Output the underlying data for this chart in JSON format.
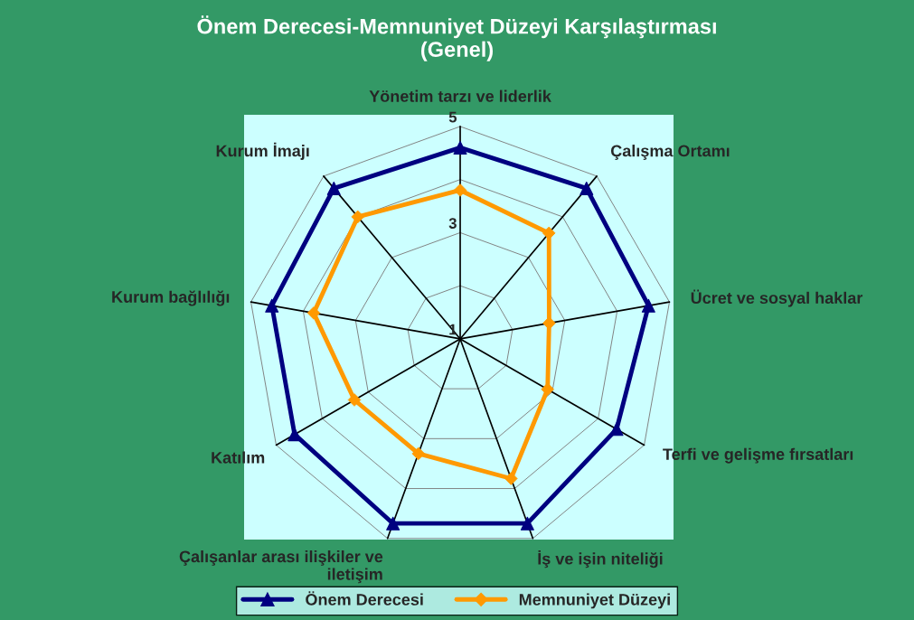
{
  "chart_data": {
    "type": "radar",
    "title": "Önem Derecesi-Memnuniyet Düzeyi Karşılaştırması\n(Genel)",
    "categories": [
      "Yönetim tarzı ve liderlik",
      "Çalışma Ortamı",
      "Ücret ve sosyal haklar",
      "Terfi ve gelişme fırsatları",
      "İş ve işin niteliği",
      "Çalışanlar arası ilişkiler ve\niletişim",
      "Katılım",
      "Kurum bağlılığı",
      "Kurum İmajı"
    ],
    "series": [
      {
        "name": "Önem Derecesi",
        "color": "#000080",
        "marker": "triangle",
        "values": [
          4.6,
          4.7,
          4.6,
          4.4,
          4.7,
          4.7,
          4.6,
          4.6,
          4.7
        ]
      },
      {
        "name": "Memnuniyet Düzeyi",
        "color": "#ff9900",
        "marker": "diamond",
        "values": [
          3.8,
          3.6,
          2.7,
          2.9,
          3.8,
          3.3,
          3.3,
          3.8,
          4.0
        ]
      }
    ],
    "ylim": [
      1,
      5
    ],
    "yticks": [
      1,
      3,
      5
    ],
    "grid": true,
    "legend": "bottom"
  }
}
